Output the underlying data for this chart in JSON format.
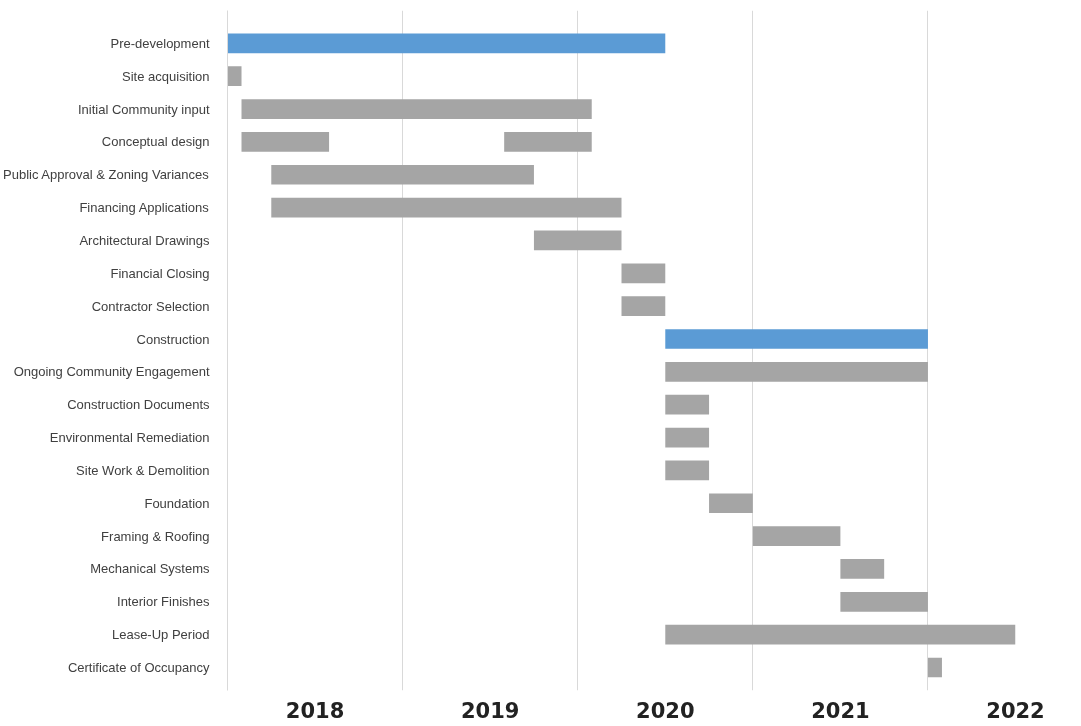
{
  "chart_data": {
    "type": "bar",
    "orientation": "horizontal",
    "categories": [
      "Pre-development",
      "Site acquisition",
      "Initial Community input",
      "Conceptual design",
      "Public Approval & Zoning Variances",
      "Financing Applications",
      "Architectural Drawings",
      "Financial Closing",
      "Contractor Selection",
      "Construction",
      "Ongoing Community Engagement",
      "Construction Documents",
      "Environmental Remediation",
      "Site Work & Demolition",
      "Foundation",
      "Framing & Roofing",
      "Mechanical Systems",
      "Interior Finishes",
      "Lease-Up Period",
      "Certificate of Occupancy"
    ],
    "series": [
      {
        "base": [
          2018,
          2018,
          2018.08,
          2018.08,
          2018.25,
          2018.25,
          2019.75,
          2020.25,
          2020.25,
          2020.5,
          2020.5,
          2020.5,
          2020.5,
          2020.5,
          2020.75,
          2021,
          2021.5,
          2021.5,
          2020.5,
          2022
        ],
        "values": [
          2.5,
          0.08,
          2,
          0.5,
          1.5,
          2,
          0.5,
          0.25,
          0.25,
          1.5,
          1.5,
          0.25,
          0.25,
          0.25,
          0.25,
          0.5,
          0.25,
          0.5,
          2,
          0.08
        ],
        "colors": [
          "#5b9bd5",
          "#a5a5a5",
          "#a5a5a5",
          "#a5a5a5",
          "#a5a5a5",
          "#a5a5a5",
          "#a5a5a5",
          "#a5a5a5",
          "#a5a5a5",
          "#5b9bd5",
          "#a5a5a5",
          "#a5a5a5",
          "#a5a5a5",
          "#a5a5a5",
          "#a5a5a5",
          "#a5a5a5",
          "#a5a5a5",
          "#a5a5a5",
          "#a5a5a5",
          "#a5a5a5"
        ]
      },
      {
        "base": [
          null,
          null,
          null,
          2019.58,
          null,
          null,
          null,
          null,
          null,
          null,
          null,
          null,
          null,
          null,
          null,
          null,
          null,
          null,
          null,
          null
        ],
        "values": [
          null,
          null,
          null,
          0.5,
          null,
          null,
          null,
          null,
          null,
          null,
          null,
          null,
          null,
          null,
          null,
          null,
          null,
          null,
          null,
          null
        ],
        "color": "#a5a5a5"
      }
    ],
    "xlim": [
      2018,
      2022.5
    ],
    "xticks": [
      {
        "value": 2018,
        "label": null
      },
      {
        "value": 2019,
        "label": null
      },
      {
        "value": 2020,
        "label": null
      },
      {
        "value": 2021,
        "label": null
      },
      {
        "value": 2022,
        "label": null
      },
      {
        "value": 2018.5,
        "label": "2018"
      },
      {
        "value": 2019.5,
        "label": "2019"
      },
      {
        "value": 2020.5,
        "label": "2020"
      },
      {
        "value": 2021.5,
        "label": "2021"
      },
      {
        "value": 2022.5,
        "label": "2022"
      }
    ],
    "grid": "x"
  }
}
